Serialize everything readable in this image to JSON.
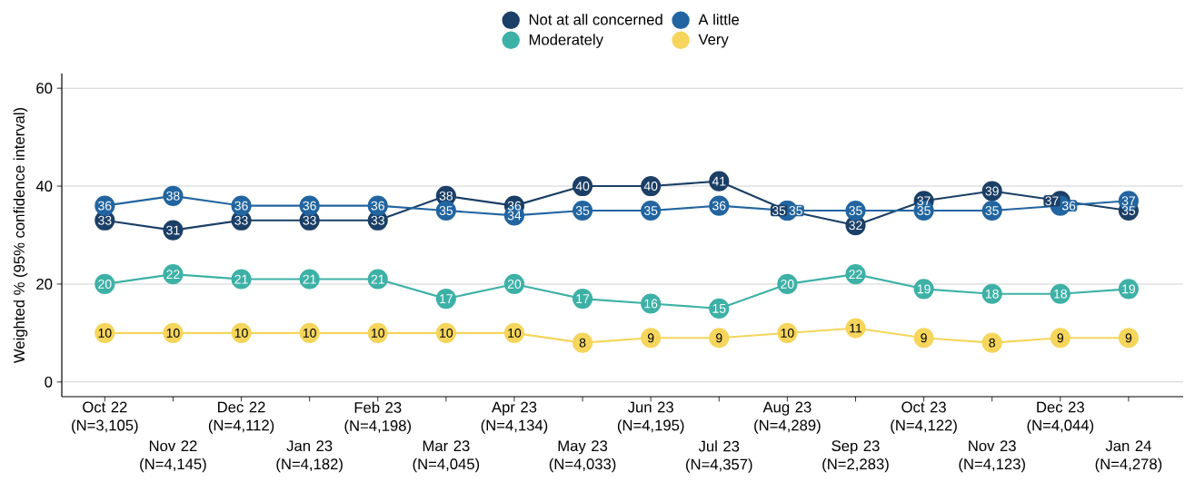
{
  "chart_data": {
    "type": "line",
    "ylabel": "Weighted % (95% confidence interval)",
    "categories": [
      "Oct 22 (N=3,105)",
      "Nov 22 (N=4,145)",
      "Dec 22 (N=4,112)",
      "Jan 23 (N=4,182)",
      "Feb 23 (N=4,198)",
      "Mar 23 (N=4,045)",
      "Apr 23 (N=4,134)",
      "May 23 (N=4,033)",
      "Jun 23 (N=4,195)",
      "Jul 23 (N=4,357)",
      "Aug 23 (N=4,289)",
      "Sep 23 (N=2,283)",
      "Oct 23 (N=4,122)",
      "Nov 23 (N=4,123)",
      "Dec 23 (N=4,044)",
      "Jan 24 (N=4,278)"
    ],
    "series": [
      {
        "name": "Not at all concerned",
        "color": "#1b3f66",
        "values": [
          33,
          31,
          33,
          33,
          33,
          38,
          36,
          40,
          40,
          41,
          35,
          32,
          37,
          39,
          37,
          35
        ]
      },
      {
        "name": "A little",
        "color": "#2265a0",
        "values": [
          36,
          38,
          36,
          36,
          36,
          35,
          34,
          35,
          35,
          36,
          35,
          35,
          35,
          35,
          36,
          37
        ]
      },
      {
        "name": "Moderately",
        "color": "#3eb1a6",
        "values": [
          20,
          22,
          21,
          21,
          21,
          17,
          20,
          17,
          16,
          15,
          20,
          22,
          19,
          18,
          18,
          19
        ]
      },
      {
        "name": "Very",
        "color": "#f5d55c",
        "values": [
          10,
          10,
          10,
          10,
          10,
          10,
          10,
          8,
          9,
          9,
          10,
          11,
          9,
          8,
          9,
          9
        ]
      }
    ],
    "ylim": [
      -3,
      63
    ],
    "yticks": [
      0,
      20,
      40,
      60
    ],
    "grid": "y",
    "legend": "top",
    "marker": "circle",
    "line_style": "solid",
    "data_labels": true
  }
}
